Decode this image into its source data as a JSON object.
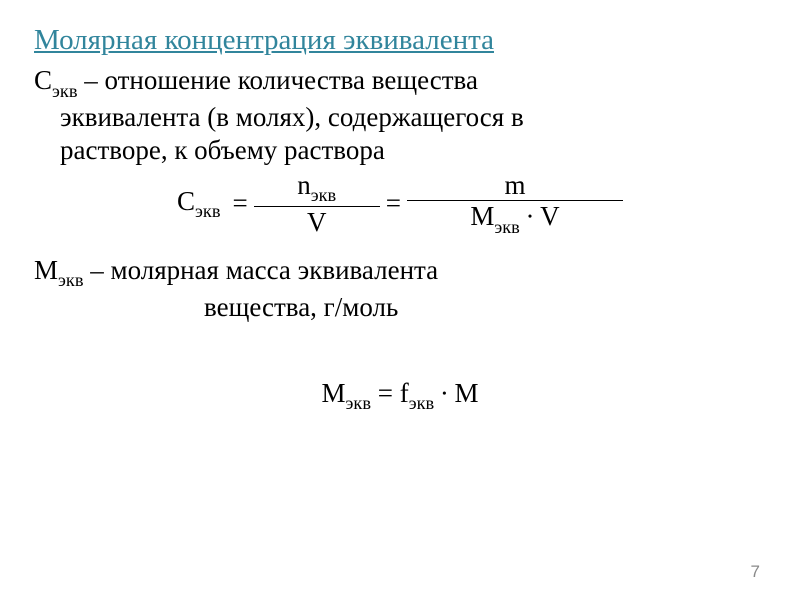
{
  "heading": "Молярная концентрация эквивалента",
  "definition": {
    "line1_prefix": "С",
    "line1_sub": "экв",
    "line1_rest": "  – отношение количества вещества",
    "line2": "эквивалента (в молях), содержащегося в",
    "line3": "растворе, к объему раствора"
  },
  "formula1": {
    "lhs_sym": "С",
    "lhs_sub": "экв",
    "eq": " = ",
    "frac1_num_sym": "n",
    "frac1_num_sub": "экв",
    "frac1_den": "V",
    "frac2_num": "m",
    "frac2_den_sym": "М",
    "frac2_den_sub": "экв",
    "frac2_den_rest": "  ∙ V"
  },
  "mekv": {
    "sym": "М",
    "sub": "экв",
    "rest": "  – молярная масса эквивалента",
    "line2": "вещества, г/моль"
  },
  "formula2": {
    "lhs_sym": "М",
    "lhs_sub": "экв",
    "mid": " = f",
    "mid_sub": "экв",
    "rhs": "  ∙ М"
  },
  "page_number": "7",
  "colors": {
    "heading": "#31859c",
    "text": "#000000",
    "page_num": "#898989",
    "background": "#ffffff"
  }
}
